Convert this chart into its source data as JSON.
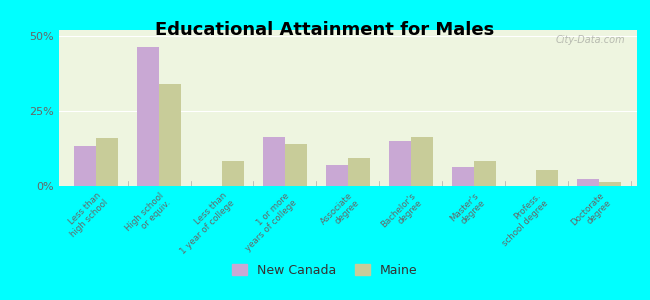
{
  "title": "Educational Attainment for Males",
  "categories": [
    "Less than\nhigh school",
    "High school\nor equiv.",
    "Less than\n1 year of college",
    "1 or more\nyears of college",
    "Associate\ndegree",
    "Bachelor's\ndegree",
    "Master's\ndegree",
    "Profess.\nschool degree",
    "Doctorate\ndegree"
  ],
  "new_canada": [
    13.5,
    46.5,
    0.0,
    16.5,
    7.0,
    15.0,
    6.5,
    0.0,
    2.5
  ],
  "maine": [
    16.0,
    34.0,
    8.5,
    14.0,
    9.5,
    16.5,
    8.5,
    5.5,
    1.5
  ],
  "new_canada_color": "#c9a8d4",
  "maine_color": "#c8cc99",
  "ylim": [
    0,
    52
  ],
  "yticks": [
    0,
    25,
    50
  ],
  "ytick_labels": [
    "0%",
    "25%",
    "50%"
  ],
  "background_color": "#eef5e0",
  "outer_background": "#00ffff",
  "bar_width": 0.35,
  "watermark": "City-Data.com",
  "legend_new_canada": "New Canada",
  "legend_maine": "Maine"
}
